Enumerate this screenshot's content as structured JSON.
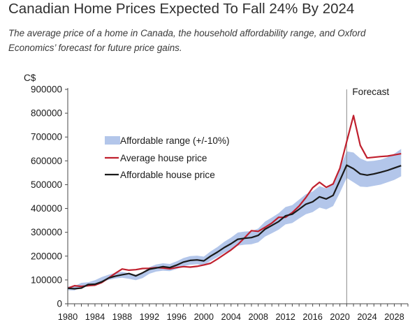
{
  "title": "Canadian Home Prices Expected To Fall 24% By 2024",
  "subtitle": "The average price of a home in Canada, the household affordability range, and Oxford Economics’ forecast for future price gains.",
  "chart_data": {
    "type": "line",
    "ylabel": "C$",
    "ylim": [
      0,
      900000
    ],
    "yticks": [
      0,
      100000,
      200000,
      300000,
      400000,
      500000,
      600000,
      700000,
      800000,
      900000
    ],
    "ytick_labels": [
      "0",
      "100000",
      "200000",
      "300000",
      "400000",
      "500000",
      "600000",
      "700000",
      "800000",
      "900000"
    ],
    "xlim": [
      1980,
      2030
    ],
    "xticks": [
      1980,
      1984,
      1988,
      1992,
      1996,
      2000,
      2004,
      2008,
      2012,
      2016,
      2020,
      2024,
      2028
    ],
    "xtick_labels": [
      "1980",
      "1984",
      "1988",
      "1992",
      "1996",
      "2000",
      "2004",
      "2008",
      "2012",
      "2016",
      "2020",
      "2024",
      "2028"
    ],
    "annotation": {
      "text": "Forecast",
      "x": 2021
    },
    "legend_position": "upper-left",
    "colors": {
      "band": "#b3c6ea",
      "average": "#c0202e",
      "affordable": "#1a1a1a",
      "forecast_line": "#8c8c8c"
    },
    "series": [
      {
        "name": "Affordable range (+/-10%)",
        "kind": "band",
        "x": [
          1980,
          1981,
          1982,
          1983,
          1984,
          1985,
          1986,
          1987,
          1988,
          1989,
          1990,
          1991,
          1992,
          1993,
          1994,
          1995,
          1996,
          1997,
          1998,
          1999,
          2000,
          2001,
          2002,
          2003,
          2004,
          2005,
          2006,
          2007,
          2008,
          2009,
          2010,
          2011,
          2012,
          2013,
          2014,
          2015,
          2016,
          2017,
          2018,
          2019,
          2020,
          2021,
          2022,
          2023,
          2024,
          2025,
          2026,
          2027,
          2028,
          2029
        ],
        "lower": [
          57000,
          56000,
          70000,
          73000,
          81000,
          92000,
          100000,
          106000,
          109000,
          105000,
          99000,
          108000,
          126000,
          135000,
          139000,
          137000,
          146000,
          157000,
          164000,
          166000,
          162000,
          180000,
          196000,
          213000,
          227000,
          244000,
          248000,
          250000,
          258000,
          282000,
          296000,
          311000,
          333000,
          339000,
          358000,
          376000,
          385000,
          404000,
          396000,
          410000,
          466000,
          528000,
          510000,
          492000,
          490000,
          495000,
          500000,
          510000,
          520000,
          535000
        ],
        "upper": [
          72000,
          74000,
          88000,
          90000,
          99000,
          112000,
          122000,
          130000,
          134000,
          128000,
          122000,
          132000,
          154000,
          165000,
          170000,
          167000,
          178000,
          192000,
          200000,
          202000,
          198000,
          220000,
          238000,
          260000,
          278000,
          299000,
          303000,
          305000,
          316000,
          345000,
          362000,
          380000,
          406000,
          414000,
          437000,
          460000,
          471000,
          494000,
          484000,
          500000,
          570000,
          640000,
          635000,
          610000,
          598000,
          600000,
          605000,
          615000,
          630000,
          650000
        ]
      },
      {
        "name": "Average house price",
        "kind": "line",
        "x": [
          1980,
          1981,
          1982,
          1983,
          1984,
          1985,
          1986,
          1987,
          1988,
          1989,
          1990,
          1991,
          1992,
          1993,
          1994,
          1995,
          1996,
          1997,
          1998,
          1999,
          2000,
          2001,
          2002,
          2003,
          2004,
          2005,
          2006,
          2007,
          2008,
          2009,
          2010,
          2011,
          2012,
          2013,
          2014,
          2015,
          2016,
          2017,
          2018,
          2019,
          2020,
          2021,
          2022,
          2023,
          2024,
          2025,
          2026,
          2027,
          2028,
          2029
        ],
        "values": [
          65000,
          76000,
          73000,
          76000,
          78000,
          89000,
          108000,
          128000,
          146000,
          141000,
          143000,
          148000,
          149000,
          152000,
          150000,
          147000,
          152000,
          156000,
          154000,
          157000,
          163000,
          170000,
          188000,
          207000,
          226000,
          249000,
          277000,
          307000,
          304000,
          321000,
          339000,
          363000,
          363000,
          383000,
          410000,
          446000,
          487000,
          510000,
          489000,
          503000,
          569000,
          680000,
          790000,
          665000,
          612000,
          615000,
          618000,
          620000,
          625000,
          630000
        ]
      },
      {
        "name": "Affordable house price",
        "kind": "line",
        "x": [
          1980,
          1981,
          1982,
          1983,
          1984,
          1985,
          1986,
          1987,
          1988,
          1989,
          1990,
          1991,
          1992,
          1993,
          1994,
          1995,
          1996,
          1997,
          1998,
          1999,
          2000,
          2001,
          2002,
          2003,
          2004,
          2005,
          2006,
          2007,
          2008,
          2009,
          2010,
          2011,
          2012,
          2013,
          2014,
          2015,
          2016,
          2017,
          2018,
          2019,
          2020,
          2021,
          2022,
          2023,
          2024,
          2025,
          2026,
          2027,
          2028,
          2029
        ],
        "values": [
          65000,
          63000,
          66000,
          81000,
          82000,
          92000,
          108000,
          116000,
          122000,
          127000,
          117000,
          130000,
          145000,
          150000,
          156000,
          152000,
          162000,
          175000,
          182000,
          184000,
          180000,
          200000,
          217000,
          236000,
          252000,
          271000,
          275000,
          278000,
          287000,
          313000,
          329000,
          345000,
          369000,
          376000,
          397000,
          418000,
          428000,
          449000,
          440000,
          455000,
          518000,
          582000,
          567000,
          545000,
          540000,
          545000,
          552000,
          560000,
          570000,
          580000
        ]
      }
    ]
  }
}
